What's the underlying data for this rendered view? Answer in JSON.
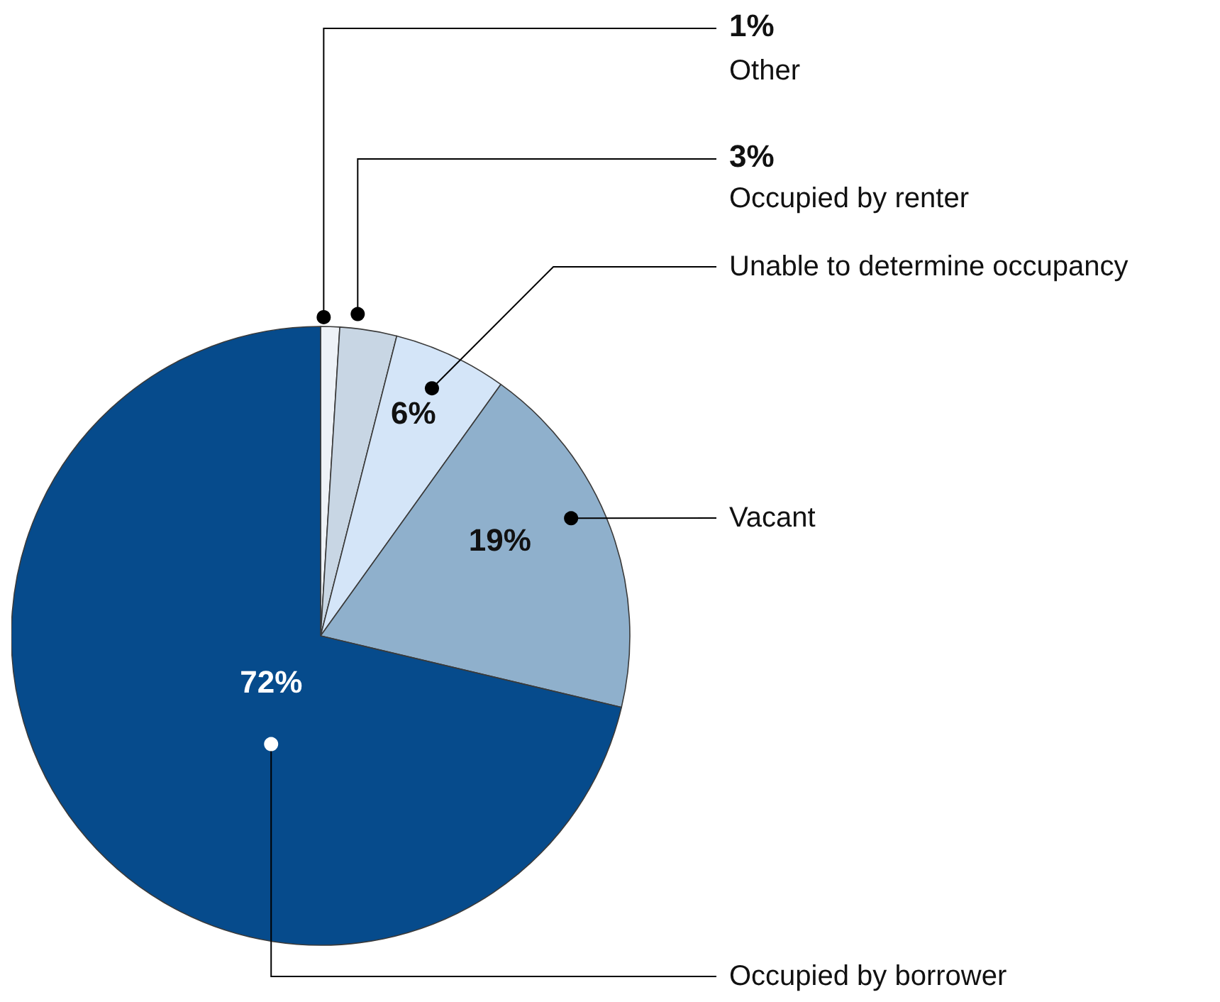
{
  "chart_data": {
    "type": "pie",
    "categories": [
      "Other",
      "Occupied by renter",
      "Unable to determine occupancy",
      "Vacant",
      "Occupied by borrower"
    ],
    "values": [
      1,
      3,
      6,
      19,
      72
    ],
    "value_labels": [
      "1%",
      "3%",
      "6%",
      "19%",
      "72%"
    ],
    "colors": [
      "#eef2f7",
      "#c8d6e4",
      "#d4e5f8",
      "#8fb0cc",
      "#064b8c"
    ],
    "legend": false
  }
}
